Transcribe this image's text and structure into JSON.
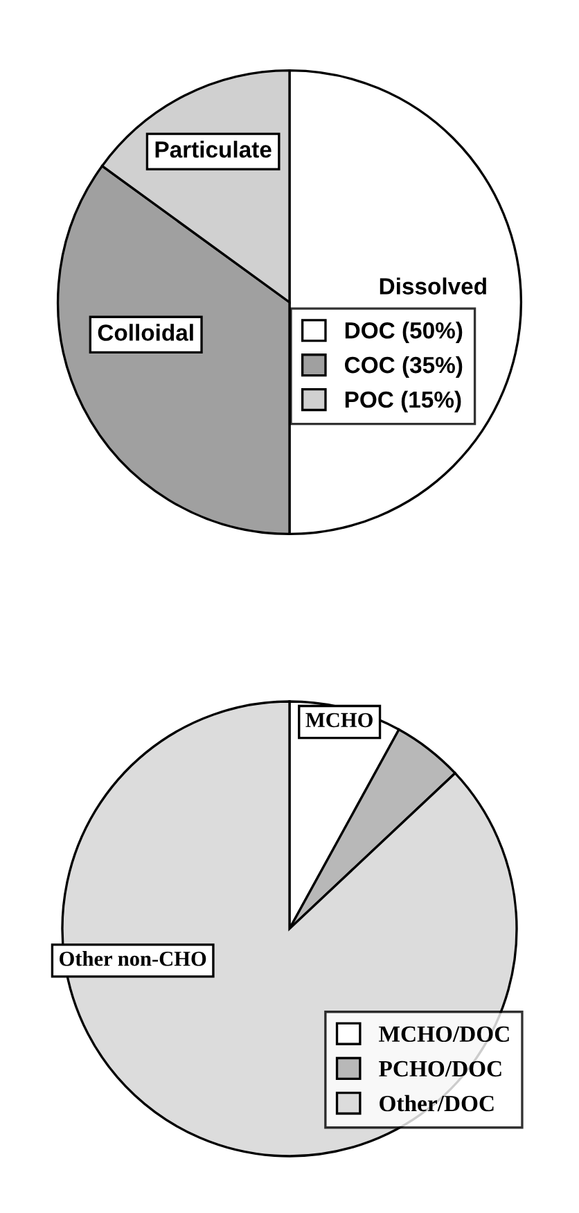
{
  "chart_data": [
    {
      "type": "pie",
      "categories": [
        "DOC (50%)",
        "COC (35%)",
        "POC (15%)"
      ],
      "values": [
        50,
        35,
        15
      ],
      "colors": [
        "#ffffff",
        "#a0a0a0",
        "#d0d0d0"
      ],
      "legend": "bottom right",
      "annotations": [
        "Particulate",
        "Colloidal",
        "Dissolved"
      ]
    },
    {
      "type": "pie",
      "categories": [
        "MCHO/DOC",
        "PCHO/DOC",
        "Other/DOC"
      ],
      "values": [
        8,
        5,
        87
      ],
      "colors": [
        "#ffffff",
        "#b8b8b8",
        "#dcdcdc"
      ],
      "legend": "bottom right",
      "annotations": [
        "MCHO",
        "Other non-CHO"
      ]
    }
  ]
}
